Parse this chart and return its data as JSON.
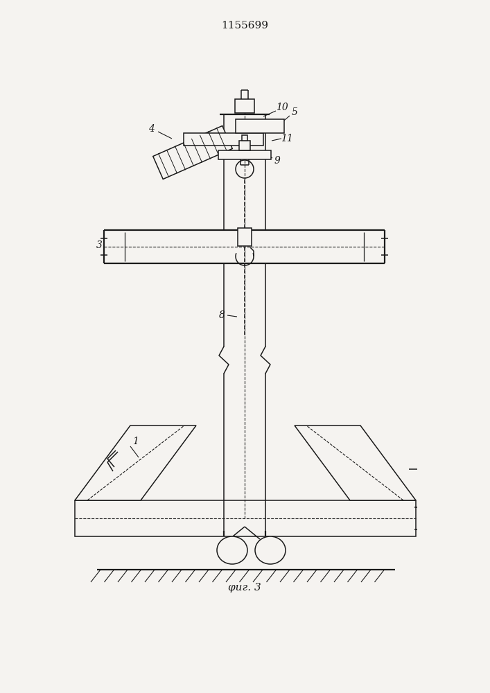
{
  "title": "1155699",
  "fig_label": "φиг. 3",
  "bg_color": "#f5f3f0",
  "line_color": "#1a1a1a",
  "lw": 1.1,
  "lw2": 1.6
}
